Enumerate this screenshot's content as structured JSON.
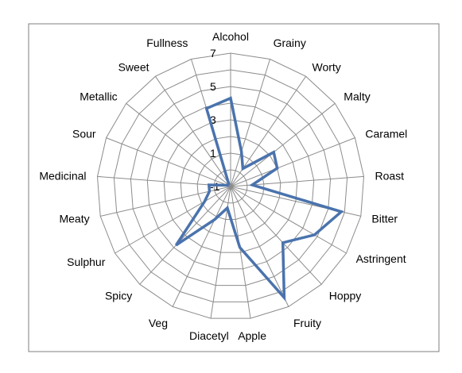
{
  "chart_data": {
    "type": "radar",
    "title": "",
    "categories": [
      "Alcohol",
      "Grainy",
      "Worty",
      "Malty",
      "Caramel",
      "Roast",
      "Bitter",
      "Astringent",
      "Hoppy",
      "Fruity",
      "Apple",
      "Diacetyl",
      "Veg",
      "Spicy",
      "Sulphur",
      "Meaty",
      "Medicinal",
      "Sour",
      "Metallic",
      "Sweet",
      "Fullness"
    ],
    "rlim": [
      -1,
      7
    ],
    "tick_labels": [
      "-1",
      "1",
      "3",
      "5",
      "7"
    ],
    "grid_rings": [
      -1,
      0,
      1,
      2,
      3,
      4,
      5,
      6,
      7
    ],
    "series": [
      {
        "values": [
          4.3,
          1.2,
          0.3,
          2.3,
          2.0,
          0.3,
          5.8,
          4.8,
          3.6,
          6.4,
          2.7,
          0.3,
          1.2,
          3.8,
          0.8,
          0.3,
          0.3,
          -0.8,
          -0.8,
          -0.8,
          3.9
        ]
      }
    ],
    "colors": {
      "series": "#4a73ad",
      "grid": "#8c8c8c",
      "frame": "#7f7f7f",
      "text": "#000000"
    },
    "legend": "none"
  }
}
